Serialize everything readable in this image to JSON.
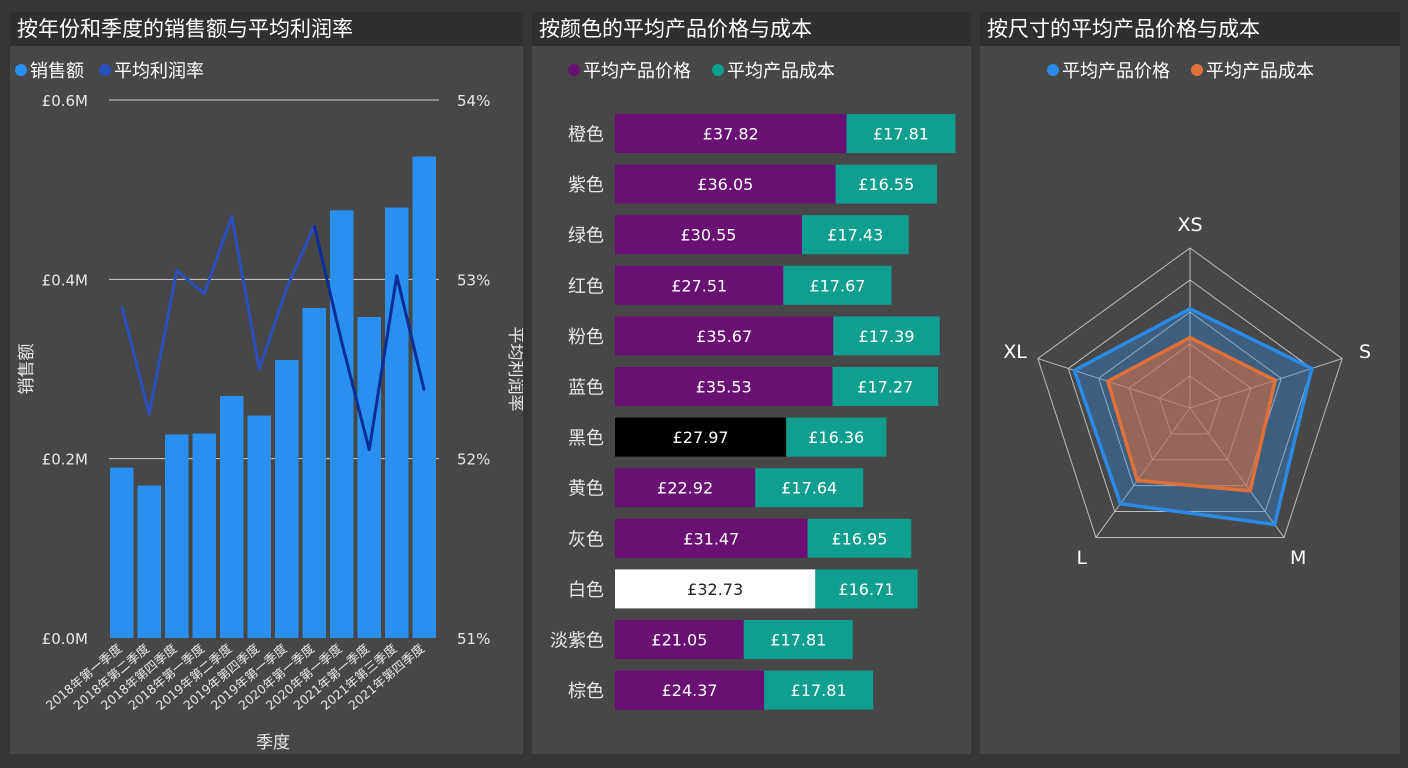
{
  "colors": {
    "sales": "#2a90f0",
    "margin": "#2b4fbf",
    "margin_dark": "#0c2c96",
    "price": "#6a0f73",
    "cost": "#0f9e8f",
    "radar_price": "#2a8ae6",
    "radar_cost": "#e0703a",
    "axis_text": "#e8e8e8",
    "grid": "#cfcfcf"
  },
  "panels": {
    "sales_title": "按年份和季度的销售额与平均利润率",
    "color_title": "按颜色的平均产品价格与成本",
    "size_title": "按尺寸的平均产品价格与成本"
  },
  "chart_data": [
    {
      "type": "bar",
      "title": "按年份和季度的销售额与平均利润率",
      "xlabel": "季度",
      "ylabel": "销售额",
      "y2label": "平均利润率",
      "ylim": [
        0,
        0.6
      ],
      "y2lim": [
        51,
        54
      ],
      "yticks": [
        "£0.0M",
        "£0.2M",
        "£0.4M",
        "£0.6M"
      ],
      "y2ticks": [
        "51%",
        "52%",
        "53%",
        "54%"
      ],
      "legend_position": "top-left",
      "categories": [
        "2018年第一季度",
        "2018年第二季度",
        "2018年第四季度",
        "2018年第一季度",
        "2019年第二季度",
        "2019年第四季度",
        "2019年第一季度",
        "2020年第一季度",
        "2020年第一季度",
        "2021年第一季度",
        "2021年第三季度",
        "2021年第四季度"
      ],
      "series": [
        {
          "name": "销售额",
          "kind": "bar",
          "axis": "left",
          "values": [
            0.19,
            0.17,
            0.227,
            0.228,
            0.27,
            0.248,
            0.31,
            0.368,
            0.477,
            0.358,
            0.48,
            0.537
          ]
        },
        {
          "name": "平均利润率",
          "kind": "line",
          "axis": "right",
          "values": [
            52.85,
            52.25,
            53.05,
            52.92,
            53.35,
            52.5,
            52.95,
            53.3,
            52.65,
            52.05,
            53.02,
            52.38
          ]
        }
      ]
    },
    {
      "type": "bar",
      "orientation": "horizontal",
      "stacked": true,
      "title": "按颜色的平均产品价格与成本",
      "legend_position": "top",
      "categories": [
        "橙色",
        "紫色",
        "绿色",
        "红色",
        "粉色",
        "蓝色",
        "黑色",
        "黄色",
        "灰色",
        "白色",
        "淡紫色",
        "棕色"
      ],
      "series": [
        {
          "name": "平均产品价格",
          "values": [
            37.82,
            36.05,
            30.55,
            27.51,
            35.67,
            35.53,
            27.97,
            22.92,
            31.47,
            32.73,
            21.05,
            24.37
          ],
          "labels": [
            "£37.82",
            "£36.05",
            "£30.55",
            "£27.51",
            "£35.67",
            "£35.53",
            "£27.97",
            "£22.92",
            "£31.47",
            "£32.73",
            "£21.05",
            "£24.37"
          ]
        },
        {
          "name": "平均产品成本",
          "values": [
            17.81,
            16.55,
            17.43,
            17.67,
            17.39,
            17.27,
            16.36,
            17.64,
            16.95,
            16.71,
            17.81,
            17.81
          ],
          "labels": [
            "£17.81",
            "£16.55",
            "£17.43",
            "£17.67",
            "£17.39",
            "£17.27",
            "£16.36",
            "£17.64",
            "£16.95",
            "£16.71",
            "£17.81",
            "£17.81"
          ]
        }
      ],
      "bar_fill_overrides": {
        "黑色": "#000000",
        "白色": "#ffffff"
      }
    },
    {
      "type": "radar",
      "title": "按尺寸的平均产品价格与成本",
      "legend_position": "top",
      "categories": [
        "XS",
        "S",
        "M",
        "L",
        "XL"
      ],
      "range": [
        0,
        50
      ],
      "series": [
        {
          "name": "平均产品价格",
          "values": [
            31,
            40,
            45,
            37,
            38
          ]
        },
        {
          "name": "平均产品成本",
          "values": [
            22,
            28,
            32,
            28,
            27
          ]
        }
      ]
    }
  ]
}
